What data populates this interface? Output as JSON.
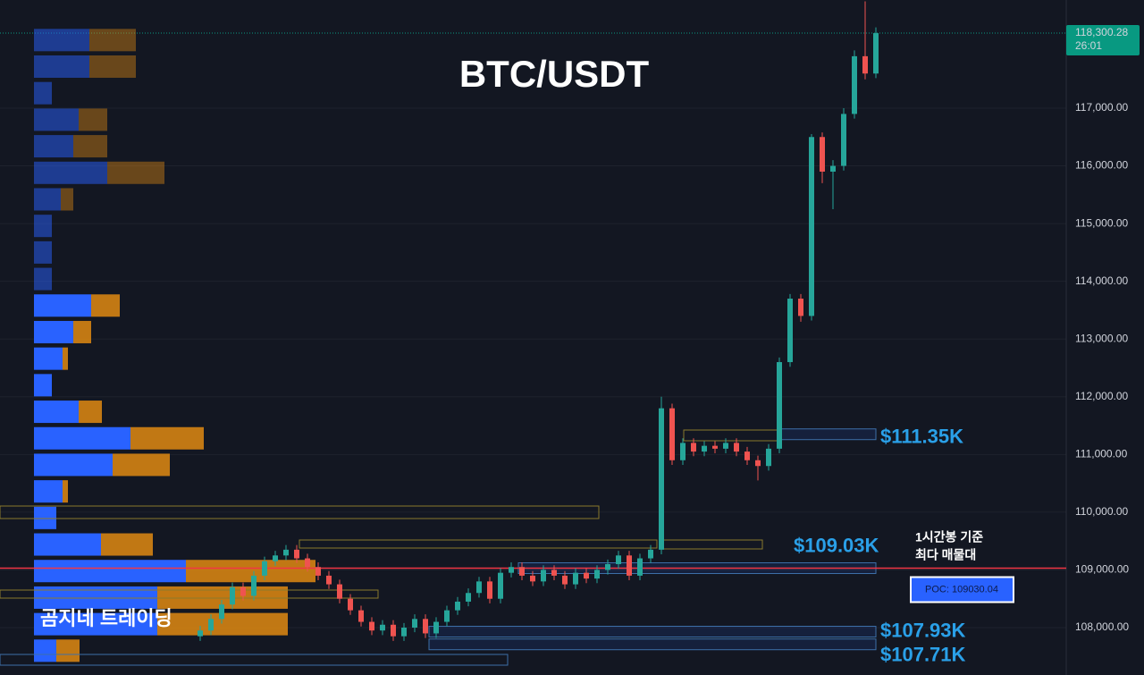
{
  "chart_data": {
    "type": "candlestick",
    "title": "BTC/USDT",
    "watermark": "곰지네 트레이딩",
    "ylim": [
      107179,
      118874
    ],
    "yticks": [
      {
        "value": 108000,
        "label": "108,000.00"
      },
      {
        "value": 109000,
        "label": "109,000.00"
      },
      {
        "value": 110000,
        "label": "110,000.00"
      },
      {
        "value": 111000,
        "label": "111,000.00"
      },
      {
        "value": 112000,
        "label": "112,000.00"
      },
      {
        "value": 113000,
        "label": "113,000.00"
      },
      {
        "value": 114000,
        "label": "114,000.00"
      },
      {
        "value": 115000,
        "label": "115,000.00"
      },
      {
        "value": 116000,
        "label": "116,000.00"
      },
      {
        "value": 117000,
        "label": "117,000.00"
      }
    ],
    "grid": true,
    "up_color": "#26a69a",
    "down_color": "#ef5350",
    "last_price": {
      "value": 118300.28,
      "label": "118,300.28",
      "countdown": "26:01",
      "color": "#089981"
    },
    "open": [
      107850,
      107950,
      108150,
      108400,
      108700,
      108550,
      108900,
      109150,
      109250,
      109350,
      109200,
      109050,
      108900,
      108750,
      108500,
      108300,
      108100,
      107950,
      108050,
      107850,
      108000,
      108150,
      107900,
      108100,
      108300,
      108450,
      108600,
      108800,
      108500,
      108950,
      109050,
      108900,
      108800,
      109000,
      108900,
      108750,
      108950,
      108850,
      109000,
      109100,
      109250,
      108900,
      109200,
      109350,
      111800,
      110900,
      111200,
      111050,
      111150,
      111100,
      111200,
      111050,
      110900,
      110800,
      111100,
      112600,
      113700,
      113400,
      116500,
      115900,
      116000,
      116900,
      117900,
      117600
    ],
    "high": [
      108030,
      108230,
      108480,
      108780,
      108780,
      108980,
      109230,
      109330,
      109430,
      109430,
      109280,
      109130,
      108980,
      108830,
      108580,
      108380,
      108180,
      108130,
      108130,
      108080,
      108230,
      108230,
      108180,
      108380,
      108530,
      108680,
      108880,
      108880,
      109030,
      109130,
      109130,
      108980,
      109080,
      109080,
      108980,
      109030,
      109030,
      109080,
      109180,
      109330,
      109330,
      109280,
      109430,
      112000,
      111880,
      111280,
      111280,
      111230,
      111230,
      111280,
      111280,
      111130,
      110980,
      111180,
      112680,
      113780,
      113780,
      116550,
      116580,
      116100,
      117000,
      118000,
      118850,
      118400
    ],
    "low": [
      107770,
      107870,
      108070,
      108320,
      108470,
      108470,
      108820,
      109070,
      109170,
      109120,
      108970,
      108820,
      108670,
      108420,
      108220,
      108020,
      107870,
      107870,
      107770,
      107770,
      107920,
      107820,
      107820,
      108020,
      108220,
      108370,
      108520,
      108420,
      108420,
      108870,
      108820,
      108720,
      108720,
      108820,
      108670,
      108670,
      108770,
      108770,
      108920,
      109020,
      108820,
      108820,
      109120,
      109270,
      110820,
      110820,
      110970,
      110970,
      111020,
      111020,
      110970,
      110820,
      110550,
      110720,
      111020,
      112520,
      113300,
      113320,
      115700,
      115250,
      115920,
      116820,
      117500,
      117520
    ],
    "close": [
      107950,
      108150,
      108400,
      108700,
      108550,
      108900,
      109150,
      109250,
      109350,
      109200,
      109050,
      108900,
      108750,
      108500,
      108300,
      108100,
      107950,
      108050,
      107850,
      108000,
      108150,
      107900,
      108100,
      108300,
      108450,
      108600,
      108800,
      108500,
      108950,
      109050,
      108900,
      108800,
      109000,
      108900,
      108750,
      108950,
      108850,
      109000,
      109100,
      109250,
      108900,
      109200,
      109350,
      111800,
      110900,
      111200,
      111050,
      111150,
      111100,
      111200,
      111050,
      110900,
      110800,
      111100,
      112600,
      113700,
      113400,
      116500,
      115900,
      116000,
      116900,
      117900,
      117600,
      118300
    ],
    "volume_profile": {
      "price_levels": [
        118180,
        117720,
        117260,
        116800,
        116340,
        115880,
        115420,
        114960,
        114500,
        114040,
        113580,
        113120,
        112660,
        112200,
        111740,
        111280,
        110820,
        110360,
        109900,
        109440,
        108980,
        108520,
        108060,
        107600
      ],
      "buy_color": "#2962ff",
      "sell_color": "#e08a12",
      "buy": [
        62,
        62,
        20,
        50,
        44,
        82,
        30,
        20,
        20,
        20,
        64,
        44,
        32,
        20,
        50,
        108,
        88,
        32,
        25,
        75,
        170,
        138,
        138,
        25
      ],
      "sell": [
        52,
        52,
        0,
        32,
        38,
        64,
        14,
        0,
        0,
        0,
        32,
        20,
        6,
        0,
        26,
        82,
        64,
        6,
        0,
        58,
        145,
        146,
        146,
        26
      ]
    },
    "zones": [
      {
        "value": 111350,
        "label": "$111.35K"
      },
      {
        "value": 109030,
        "label": "$109.03K"
      },
      {
        "value": 107930,
        "label": "$107.93K"
      },
      {
        "value": 107710,
        "label": "$107.71K"
      }
    ],
    "poc": {
      "value": 109030.04,
      "label": "POC: 109030.04",
      "note": [
        "1시간봉 기준",
        "최다 매물대"
      ],
      "color": "#f23645"
    }
  }
}
